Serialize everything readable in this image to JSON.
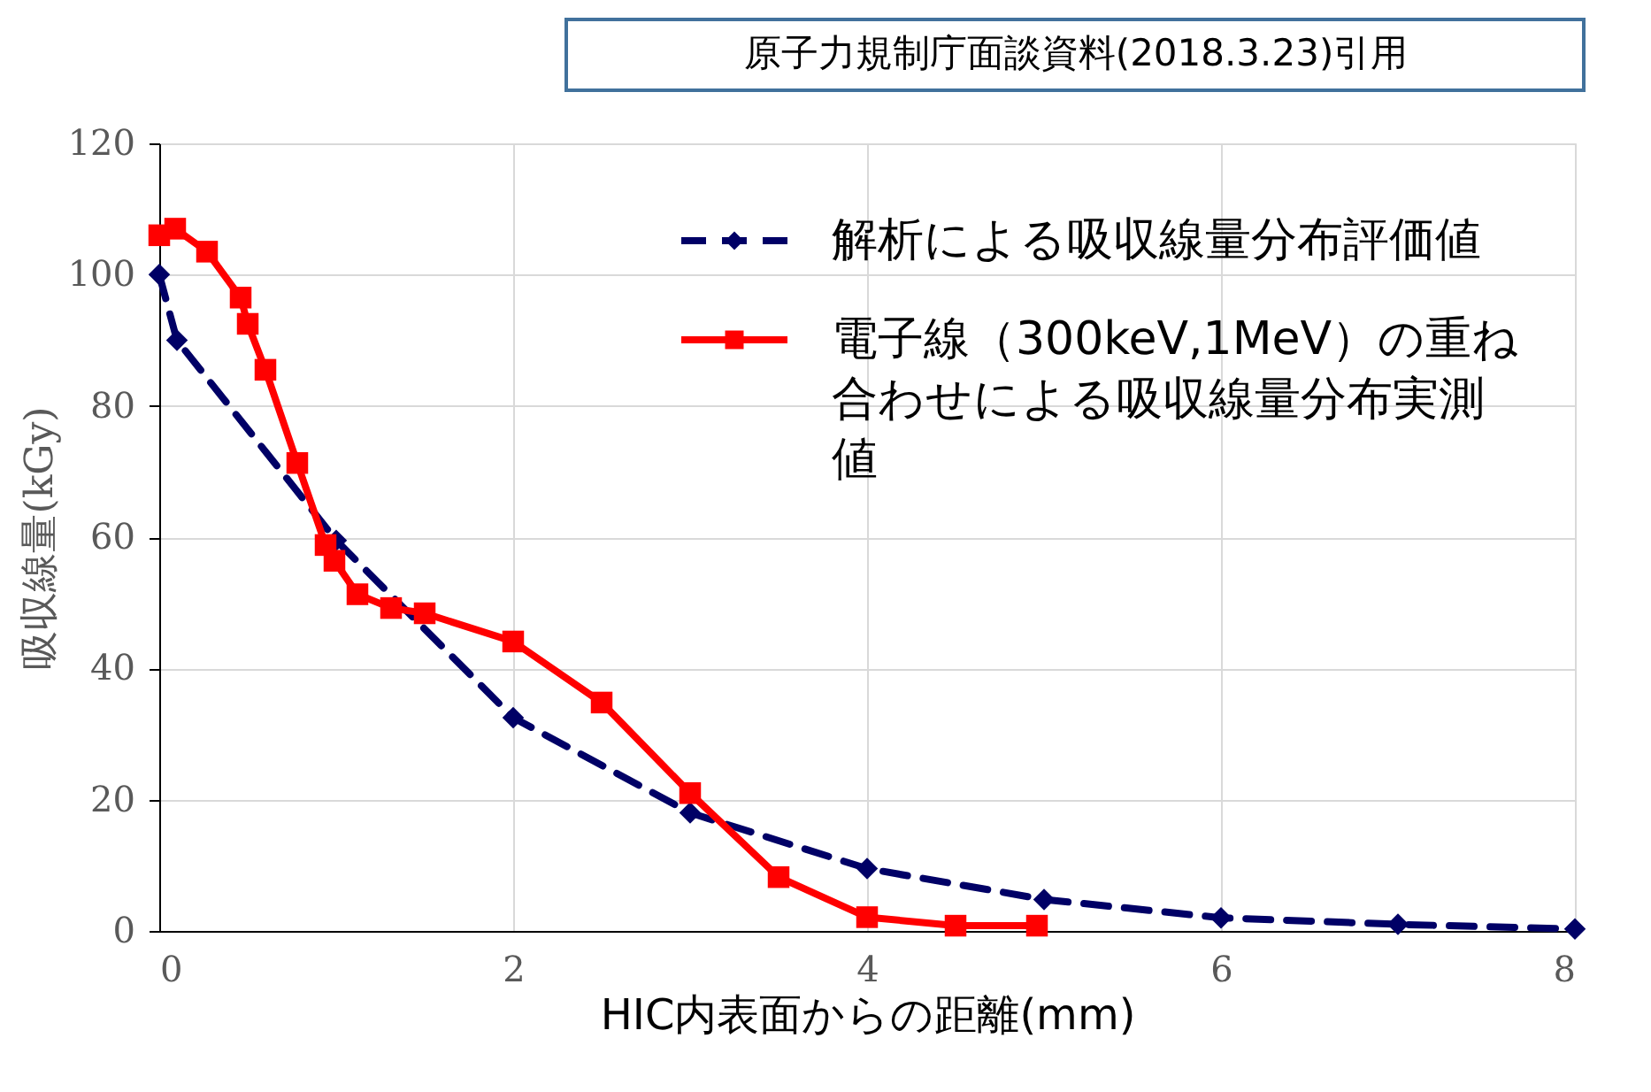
{
  "chart_data": {
    "type": "line",
    "xlabel": "HIC内表面からの距離(mm)",
    "ylabel": "吸収線量(kGy)",
    "annotations": [
      "原子力規制庁面談資料(2018.3.23)引用"
    ],
    "xlim": [
      0,
      8
    ],
    "xticks": [
      0,
      2,
      4,
      6,
      8
    ],
    "ylim": [
      0,
      120
    ],
    "yticks": [
      0,
      20,
      40,
      60,
      80,
      100,
      120
    ],
    "grid": true,
    "legend": "top right",
    "series": [
      {
        "name": "解析による吸収線量分布評価値",
        "color": "#000066",
        "marker": "diamond",
        "line_style": "dashed",
        "x": [
          0,
          0.1,
          1,
          2,
          3,
          4,
          5,
          6,
          7,
          8
        ],
        "values": [
          100,
          90,
          59.5,
          32.5,
          18,
          9.5,
          4.8,
          2,
          1,
          0.3
        ]
      },
      {
        "name": "電子線（300keV,1MeV）の重ね合わせによる吸収線量分布実測値",
        "color": "#ff0000",
        "marker": "square",
        "line_style": "solid",
        "x": [
          0,
          0.09,
          0.27,
          0.46,
          0.5,
          0.6,
          0.78,
          0.94,
          0.99,
          1.12,
          1.31,
          1.5,
          2.0,
          2.5,
          3.0,
          3.5,
          4.0,
          4.5,
          4.96
        ],
        "values": [
          106,
          107,
          103.5,
          96.5,
          92.5,
          85.5,
          71.3,
          58.8,
          56.4,
          51.3,
          49.2,
          48.4,
          44.1,
          34.8,
          21,
          8.2,
          2.1,
          0.8,
          0.8
        ]
      }
    ]
  }
}
